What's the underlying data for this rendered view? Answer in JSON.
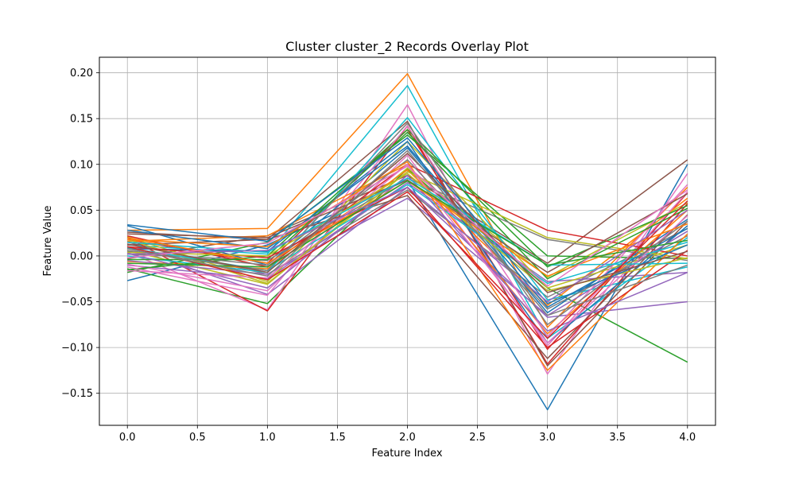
{
  "chart_data": {
    "type": "line",
    "title": "Cluster cluster_2 Records Overlay Plot",
    "xlabel": "Feature Index",
    "ylabel": "Feature Value",
    "x": [
      0,
      1,
      2,
      3,
      4
    ],
    "xlim": [
      -0.2,
      4.2
    ],
    "ylim": [
      -0.185,
      0.217
    ],
    "x_ticks": [
      "0.0",
      "0.5",
      "1.0",
      "1.5",
      "2.0",
      "2.5",
      "3.0",
      "3.5",
      "4.0"
    ],
    "y_ticks": [
      "0.20",
      "0.15",
      "0.10",
      "0.05",
      "0.00",
      "−0.05",
      "−0.10",
      "−0.15"
    ],
    "grid": true,
    "legend": "none",
    "colors": [
      "#1f77b4",
      "#ff7f0e",
      "#2ca02c",
      "#d62728",
      "#9467bd",
      "#8c564b",
      "#e377c2",
      "#7f7f7f",
      "#bcbd22",
      "#17becf"
    ],
    "series": [
      {
        "values": [
          -0.027,
          0.012,
          0.083,
          -0.168,
          0.1
        ]
      },
      {
        "values": [
          0.028,
          0.03,
          0.199,
          -0.078,
          0.075
        ]
      },
      {
        "values": [
          -0.014,
          -0.052,
          0.095,
          -0.035,
          -0.116
        ]
      },
      {
        "values": [
          0.018,
          -0.008,
          0.138,
          -0.102,
          0.069
        ]
      },
      {
        "values": [
          0.01,
          -0.042,
          0.075,
          -0.067,
          -0.05
        ]
      },
      {
        "values": [
          -0.003,
          0.022,
          0.088,
          -0.008,
          0.105
        ]
      },
      {
        "values": [
          0.004,
          -0.059,
          0.165,
          -0.129,
          0.09
        ]
      },
      {
        "values": [
          0.015,
          -0.02,
          0.072,
          -0.045,
          0.03
        ]
      },
      {
        "values": [
          0.006,
          -0.031,
          0.096,
          -0.023,
          0.058
        ]
      },
      {
        "values": [
          0.012,
          0.002,
          0.186,
          -0.09,
          0.02
        ]
      },
      {
        "values": [
          0.033,
          -0.01,
          0.118,
          -0.062,
          0.04
        ]
      },
      {
        "values": [
          -0.006,
          -0.014,
          0.094,
          -0.054,
          0.063
        ]
      },
      {
        "values": [
          -0.018,
          0.015,
          0.132,
          0.0,
          -0.003
        ]
      },
      {
        "values": [
          0.02,
          -0.06,
          0.142,
          -0.118,
          0.057
        ]
      },
      {
        "values": [
          -0.01,
          -0.025,
          0.08,
          -0.028,
          -0.018
        ]
      },
      {
        "values": [
          0.026,
          0.018,
          0.147,
          -0.12,
          0.038
        ]
      },
      {
        "values": [
          -0.009,
          -0.038,
          0.11,
          -0.098,
          0.07
        ]
      },
      {
        "values": [
          0.002,
          -0.005,
          0.085,
          0.018,
          -0.005
        ]
      },
      {
        "values": [
          0.021,
          -0.028,
          0.125,
          -0.035,
          0.012
        ]
      },
      {
        "values": [
          0.0,
          -0.018,
          0.151,
          -0.048,
          -0.012
        ]
      },
      {
        "values": [
          0.008,
          0.005,
          0.125,
          -0.095,
          0.033
        ]
      },
      {
        "values": [
          0.016,
          0.022,
          0.1,
          -0.085,
          0.05
        ]
      },
      {
        "values": [
          -0.015,
          0.0,
          0.138,
          -0.012,
          0.055
        ]
      },
      {
        "values": [
          0.022,
          -0.012,
          0.1,
          0.028,
          0.0
        ]
      },
      {
        "values": [
          -0.005,
          -0.02,
          0.063,
          -0.065,
          0.027
        ]
      },
      {
        "values": [
          0.012,
          0.018,
          0.066,
          -0.112,
          0.045
        ]
      },
      {
        "values": [
          -0.012,
          -0.043,
          0.142,
          -0.088,
          0.078
        ]
      },
      {
        "values": [
          0.005,
          -0.01,
          0.105,
          -0.058,
          0.022
        ]
      },
      {
        "values": [
          0.018,
          -0.03,
          0.092,
          0.02,
          -0.003
        ]
      },
      {
        "values": [
          0.009,
          -0.016,
          0.078,
          -0.03,
          0.015
        ]
      },
      {
        "values": [
          0.028,
          0.008,
          0.12,
          -0.056,
          0.03
        ]
      },
      {
        "values": [
          0.018,
          0.01,
          0.103,
          -0.125,
          0.024
        ]
      },
      {
        "values": [
          -0.004,
          -0.004,
          0.135,
          -0.025,
          0.052
        ]
      },
      {
        "values": [
          0.01,
          -0.002,
          0.075,
          -0.1,
          0.006
        ]
      },
      {
        "values": [
          0.003,
          -0.035,
          0.088,
          -0.082,
          -0.018
        ]
      },
      {
        "values": [
          0.024,
          0.02,
          0.083,
          -0.018,
          0.068
        ]
      },
      {
        "values": [
          -0.016,
          -0.024,
          0.1,
          -0.095,
          0.044
        ]
      },
      {
        "values": [
          0.006,
          -0.016,
          0.145,
          -0.075,
          0.038
        ]
      },
      {
        "values": [
          0.004,
          0.0,
          0.09,
          -0.038,
          -0.002
        ]
      },
      {
        "values": [
          0.015,
          0.004,
          0.085,
          -0.01,
          -0.008
        ]
      },
      {
        "values": [
          0.034,
          0.016,
          0.129,
          -0.052,
          0.012
        ]
      },
      {
        "values": [
          0.02,
          -0.008,
          0.082,
          -0.022,
          0.035
        ]
      },
      {
        "values": [
          -0.008,
          -0.012,
          0.082,
          -0.01,
          0.017
        ]
      },
      {
        "values": [
          0.01,
          -0.026,
          0.07,
          -0.09,
          0.06
        ]
      },
      {
        "values": [
          0.002,
          0.006,
          0.075,
          -0.05,
          0.05
        ]
      },
      {
        "values": [
          0.013,
          -0.018,
          0.112,
          -0.04,
          0.005
        ]
      },
      {
        "values": [
          -0.002,
          0.014,
          0.098,
          -0.033,
          0.072
        ]
      },
      {
        "values": [
          0.008,
          -0.022,
          0.115,
          -0.065,
          -0.01
        ]
      }
    ]
  }
}
